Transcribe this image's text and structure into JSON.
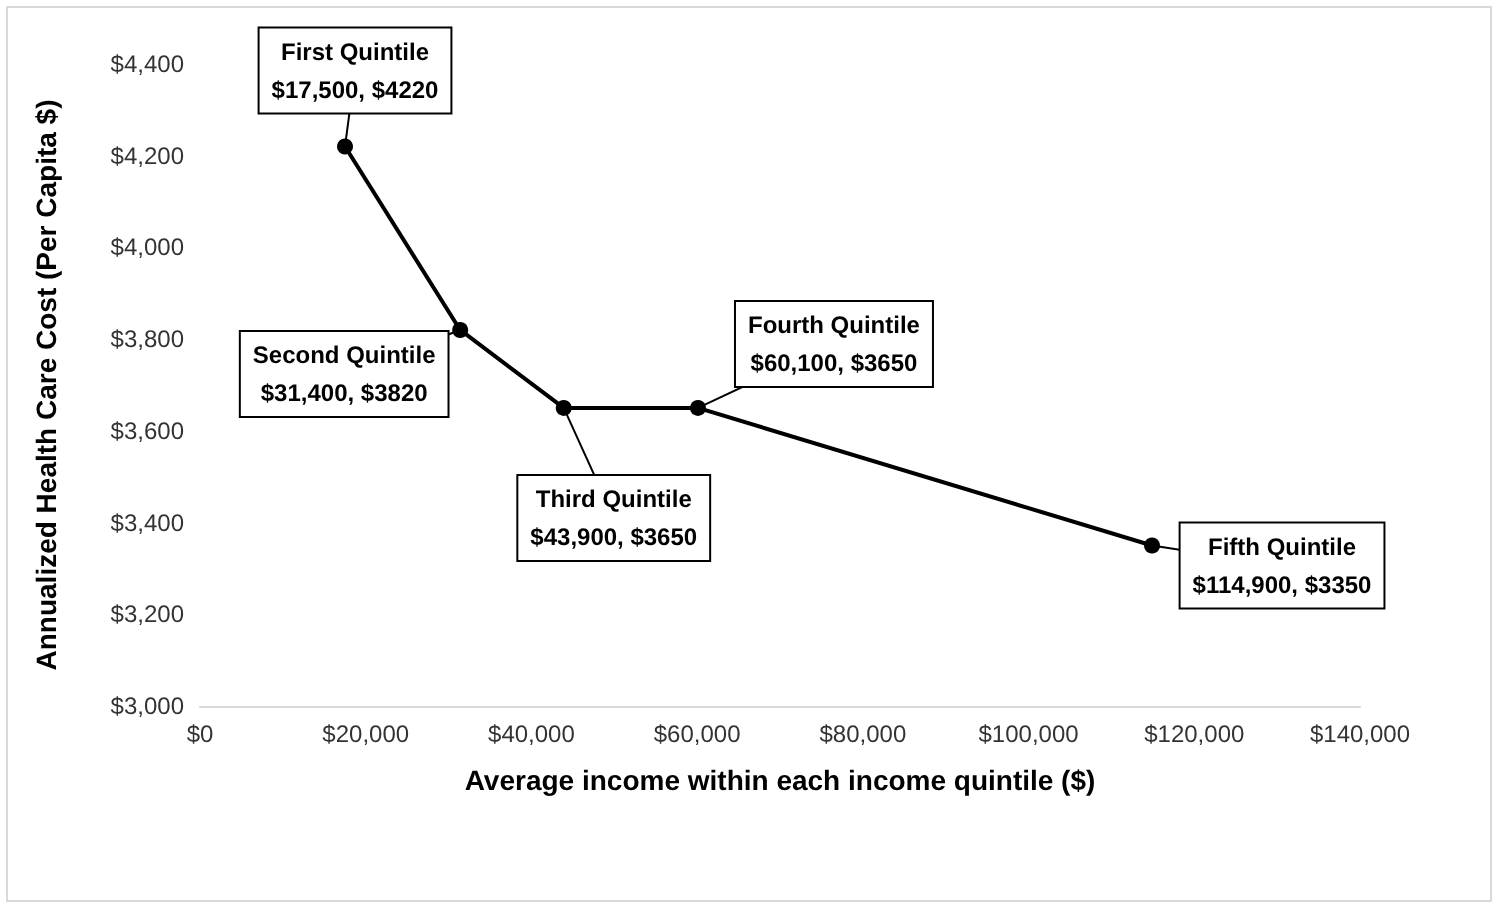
{
  "chart_data": {
    "type": "line",
    "xlabel": "Average income within each income quintile ($)",
    "ylabel": "Annualized Health Care Cost (Per Capita $)",
    "x": [
      17500,
      31400,
      43900,
      60100,
      114900
    ],
    "series": [
      {
        "color": "#000000",
        "values": [
          4220,
          3820,
          3650,
          3650,
          3350
        ]
      }
    ],
    "marker": "circle",
    "line_style": "solid",
    "grid": false,
    "xlim": [
      0,
      140000
    ],
    "xticks": [
      {
        "value": 0,
        "label": "$0"
      },
      {
        "value": 20000,
        "label": "$20,000"
      },
      {
        "value": 40000,
        "label": "$40,000"
      },
      {
        "value": 60000,
        "label": "$60,000"
      },
      {
        "value": 80000,
        "label": "$80,000"
      },
      {
        "value": 100000,
        "label": "$100,000"
      },
      {
        "value": 120000,
        "label": "$120,000"
      },
      {
        "value": 140000,
        "label": "$140,000"
      }
    ],
    "ylim": [
      3000,
      4400
    ],
    "yticks": [
      {
        "value": 3000,
        "label": "$3,000"
      },
      {
        "value": 3200,
        "label": "$3,200"
      },
      {
        "value": 3400,
        "label": "$3,400"
      },
      {
        "value": 3600,
        "label": "$3,600"
      },
      {
        "value": 3800,
        "label": "$3,800"
      },
      {
        "value": 4000,
        "label": "$4,000"
      },
      {
        "value": 4200,
        "label": "$4,200"
      },
      {
        "value": 4400,
        "label": "$4,400"
      }
    ],
    "annotations": [
      {
        "text": "First Quintile\n$17,500, $4220",
        "x": 17500,
        "y": 4220
      },
      {
        "text": "Second Quintile\n$31,400, $3820",
        "x": 31400,
        "y": 3820
      },
      {
        "text": "Third Quintile\n$43,900, $3650",
        "x": 43900,
        "y": 3650
      },
      {
        "text": "Fourth Quintile\n$60,100, $3650",
        "x": 60100,
        "y": 3650
      },
      {
        "text": "Fifth Quintile\n$114,900, $3350",
        "x": 114900,
        "y": 3350
      }
    ]
  }
}
